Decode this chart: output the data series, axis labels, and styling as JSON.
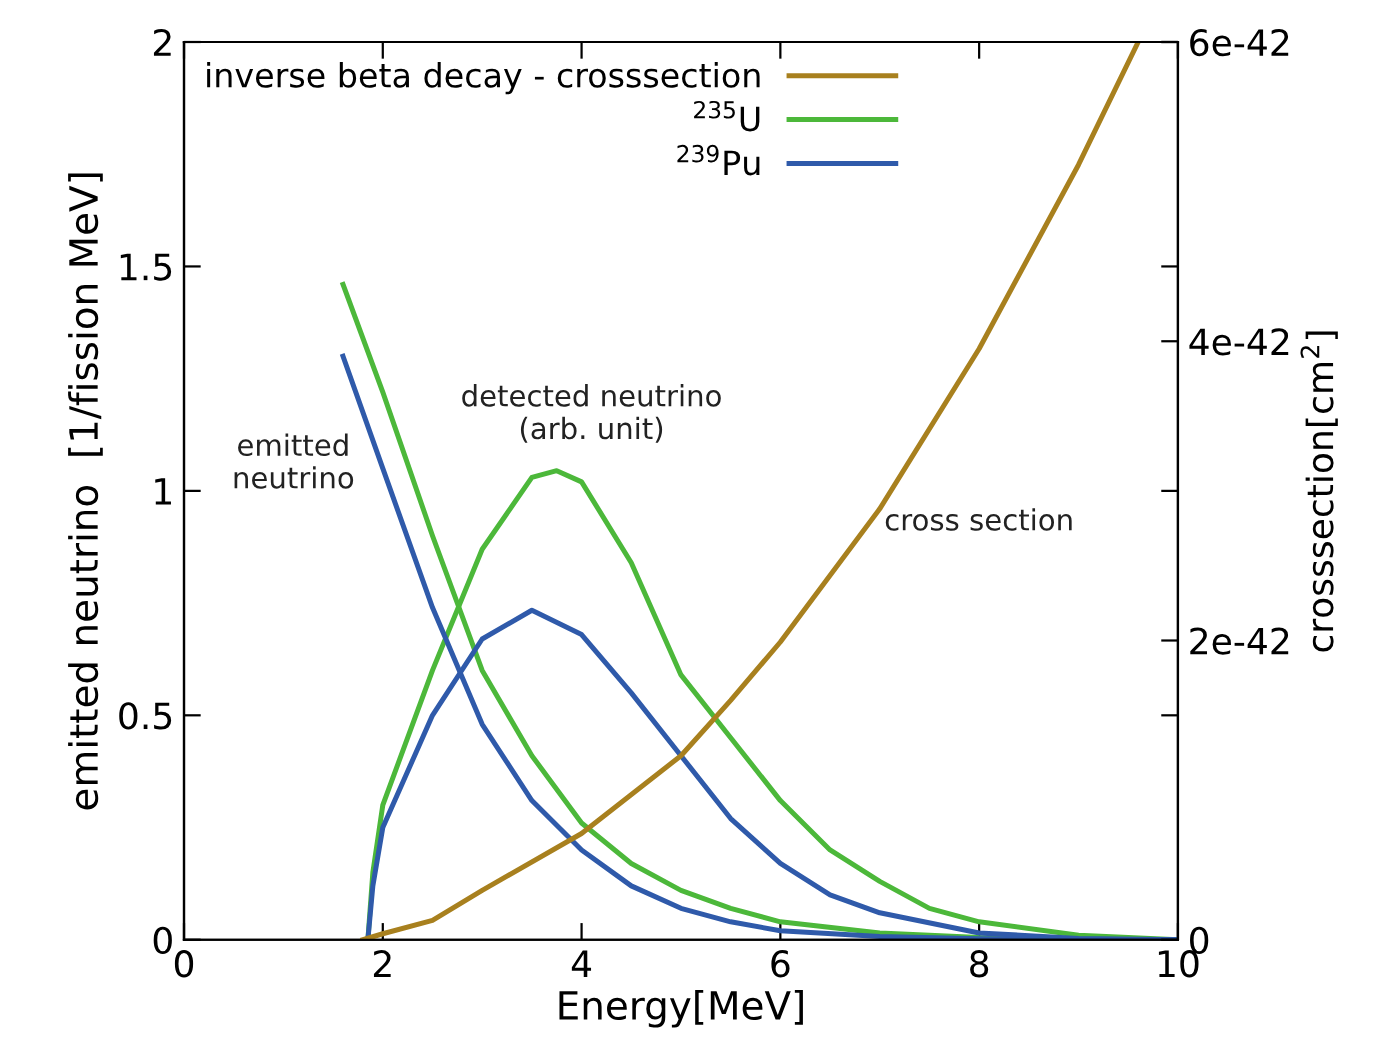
{
  "chart_data": {
    "type": "line",
    "xlabel": "Energy[MeV]",
    "ylabel": "emitted neutrino  [1/fission MeV]",
    "y2label": "crosssection[cm$^{2}$]",
    "xlim": [
      0,
      10
    ],
    "ylim": [
      0,
      2
    ],
    "xticks": [
      0,
      2,
      4,
      6,
      8,
      10
    ],
    "yticks": [
      0,
      0.5,
      1,
      1.5,
      2
    ],
    "y2lim": [
      0,
      6e-42
    ],
    "y2ticks": [
      0,
      2e-42,
      4e-42,
      6e-42
    ],
    "legend": "top left",
    "grid": false,
    "marker": "none",
    "line_style": "solid",
    "annotations": [
      "emitted\nneutrino",
      "detected neutrino\n(arb. unit)",
      "cross section"
    ],
    "series": [
      {
        "name": "inverse beta decay - crosssection",
        "color": "#a8801e",
        "axis": "y2",
        "x": [
          1.8,
          2.0,
          2.5,
          3.0,
          4.0,
          5.0,
          5.5,
          6.0,
          7.0,
          8.0,
          9.0,
          9.6
        ],
        "values": [
          0,
          4e-44,
          1.3e-43,
          3.3e-43,
          7.1e-43,
          1.23e-42,
          1.6e-42,
          1.99e-42,
          2.88e-42,
          3.95e-42,
          5.18e-42,
          6e-42
        ]
      },
      {
        "name": "$^{235}$U",
        "color": "#4cb83a",
        "x": [
          1.6,
          2.0,
          2.5,
          3.0,
          3.5,
          4.0,
          4.5,
          5.0,
          5.5,
          6.0,
          7.0,
          8.0,
          9.0,
          10.0
        ],
        "values": [
          1.46,
          1.22,
          0.9,
          0.6,
          0.41,
          0.26,
          0.17,
          0.11,
          0.07,
          0.04,
          0.015,
          0.005,
          0.002,
          0
        ]
      },
      {
        "color": "#4cb83a",
        "x": [
          1.85,
          1.9,
          2.0,
          2.5,
          3.0,
          3.5,
          3.75,
          4.0,
          4.5,
          5.0,
          5.5,
          6.0,
          6.5,
          7.0,
          7.5,
          8.0,
          9.0,
          10.0
        ],
        "values": [
          0,
          0.15,
          0.3,
          0.6,
          0.87,
          1.03,
          1.045,
          1.02,
          0.84,
          0.59,
          0.45,
          0.31,
          0.2,
          0.13,
          0.07,
          0.04,
          0.01,
          0
        ]
      },
      {
        "name": "$^{239}$Pu",
        "color": "#2f5aaa",
        "x": [
          1.6,
          2.0,
          2.5,
          3.0,
          3.5,
          4.0,
          4.5,
          5.0,
          5.5,
          6.0,
          7.0,
          8.0,
          10.0
        ],
        "values": [
          1.3,
          1.05,
          0.74,
          0.48,
          0.31,
          0.2,
          0.12,
          0.07,
          0.04,
          0.02,
          0.007,
          0.002,
          0
        ]
      },
      {
        "color": "#2f5aaa",
        "x": [
          1.85,
          1.9,
          2.0,
          2.5,
          3.0,
          3.5,
          4.0,
          4.5,
          5.0,
          5.5,
          6.0,
          6.5,
          7.0,
          8.0,
          9.0,
          10.0
        ],
        "values": [
          0,
          0.12,
          0.25,
          0.5,
          0.67,
          0.734,
          0.68,
          0.55,
          0.41,
          0.27,
          0.17,
          0.1,
          0.06,
          0.015,
          0.003,
          0
        ]
      }
    ]
  }
}
